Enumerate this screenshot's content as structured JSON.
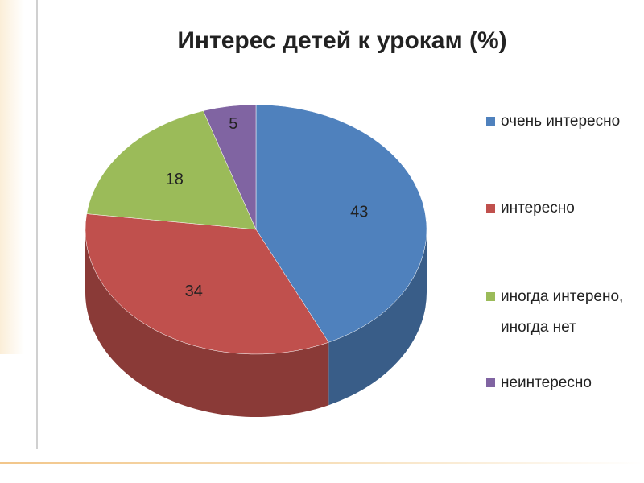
{
  "chart_data": {
    "type": "pie",
    "title": "Интерес детей к урокам (%)",
    "categories": [
      "очень интересно",
      "интересно",
      "иногда интерено, иногда нет",
      "неинтересно"
    ],
    "values": [
      43,
      34,
      18,
      5
    ],
    "colors": [
      "#4f81bd",
      "#c0504d",
      "#9bbb59",
      "#8064a2"
    ],
    "legend": "right"
  }
}
